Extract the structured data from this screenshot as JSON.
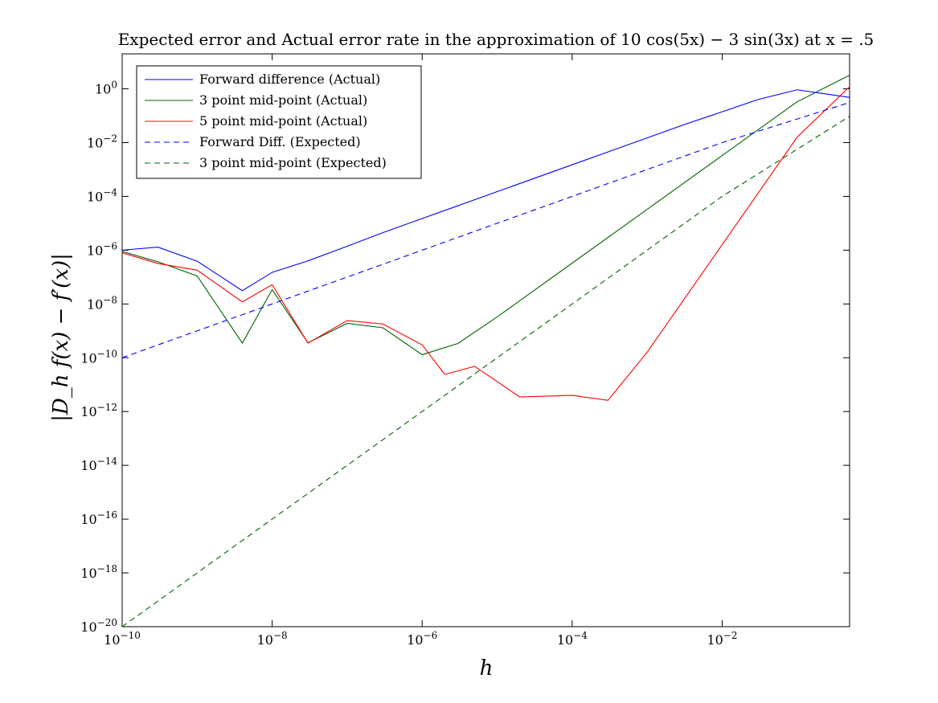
{
  "chart_data": {
    "type": "line",
    "title": "Expected error and Actual error rate in the approximation of 10 cos(5x) − 3 sin(3x) at x = .5",
    "xlabel": "h",
    "ylabel": "|D_h f(x) − f′(x)|",
    "xscale": "log",
    "yscale": "log",
    "xlim": [
      1e-10,
      0.5
    ],
    "ylim": [
      1e-20,
      20
    ],
    "grid": false,
    "legend_position": "top-left",
    "x_ticks": [
      {
        "value": 1e-10,
        "base": "10",
        "exp": "−10"
      },
      {
        "value": 1e-08,
        "base": "10",
        "exp": "−8"
      },
      {
        "value": 1e-06,
        "base": "10",
        "exp": "−6"
      },
      {
        "value": 0.0001,
        "base": "10",
        "exp": "−4"
      },
      {
        "value": 0.01,
        "base": "10",
        "exp": "−2"
      }
    ],
    "y_ticks": [
      {
        "value": 1e-20,
        "base": "10",
        "exp": "−20"
      },
      {
        "value": 1e-18,
        "base": "10",
        "exp": "−18"
      },
      {
        "value": 1e-16,
        "base": "10",
        "exp": "−16"
      },
      {
        "value": 1e-14,
        "base": "10",
        "exp": "−14"
      },
      {
        "value": 1e-12,
        "base": "10",
        "exp": "−12"
      },
      {
        "value": 1e-10,
        "base": "10",
        "exp": "−10"
      },
      {
        "value": 1e-08,
        "base": "10",
        "exp": "−8"
      },
      {
        "value": 1e-06,
        "base": "10",
        "exp": "−6"
      },
      {
        "value": 0.0001,
        "base": "10",
        "exp": "−4"
      },
      {
        "value": 0.01,
        "base": "10",
        "exp": "−2"
      },
      {
        "value": 1,
        "base": "10",
        "exp": "0"
      }
    ],
    "series": [
      {
        "name": "Forward difference (Actual)",
        "color": "#0000ff",
        "dash": "solid",
        "points": [
          [
            1e-10,
            1e-06
          ],
          [
            3e-10,
            1.3e-06
          ],
          [
            1e-09,
            3.9e-07
          ],
          [
            4e-09,
            3.1e-08
          ],
          [
            1e-08,
            1.5e-07
          ],
          [
            3e-08,
            4e-07
          ],
          [
            1e-07,
            1.4e-06
          ],
          [
            3e-07,
            4.5e-06
          ],
          [
            1e-06,
            1.5e-05
          ],
          [
            3e-06,
            4.5e-05
          ],
          [
            1e-05,
            0.00015
          ],
          [
            3e-05,
            0.00045
          ],
          [
            0.0001,
            0.0015
          ],
          [
            0.0003,
            0.0045
          ],
          [
            0.001,
            0.015
          ],
          [
            0.003,
            0.045
          ],
          [
            0.01,
            0.14
          ],
          [
            0.03,
            0.4
          ],
          [
            0.1,
            0.92
          ],
          [
            0.5,
            0.48
          ]
        ]
      },
      {
        "name": "3 point mid-point (Actual)",
        "color": "#006400",
        "dash": "solid",
        "points": [
          [
            1e-10,
            9e-07
          ],
          [
            3e-10,
            3.7e-07
          ],
          [
            1e-09,
            1.1e-07
          ],
          [
            4e-09,
            3.5e-10
          ],
          [
            1e-08,
            3.4e-08
          ],
          [
            3e-08,
            3.6e-10
          ],
          [
            1e-07,
            1.9e-09
          ],
          [
            3e-07,
            1.3e-09
          ],
          [
            1e-06,
            1.3e-10
          ],
          [
            3e-06,
            3.4e-10
          ],
          [
            1e-05,
            3.3e-09
          ],
          [
            0.0001,
            3.3e-07
          ],
          [
            0.001,
            3.3e-05
          ],
          [
            0.01,
            0.0033
          ],
          [
            0.1,
            0.33
          ],
          [
            0.5,
            3.2
          ]
        ]
      },
      {
        "name": "5 point mid-point (Actual)",
        "color": "#ff0000",
        "dash": "solid",
        "points": [
          [
            1e-10,
            8e-07
          ],
          [
            3e-10,
            3.2e-07
          ],
          [
            1e-09,
            1.8e-07
          ],
          [
            4e-09,
            1.2e-08
          ],
          [
            1e-08,
            5.2e-08
          ],
          [
            3e-08,
            3.5e-10
          ],
          [
            1e-07,
            2.4e-09
          ],
          [
            3e-07,
            1.8e-09
          ],
          [
            1e-06,
            3e-10
          ],
          [
            2e-06,
            2.4e-11
          ],
          [
            5e-06,
            4.8e-11
          ],
          [
            2e-05,
            3.5e-12
          ],
          [
            0.0001,
            4e-12
          ],
          [
            0.0003,
            2.6e-12
          ],
          [
            0.001,
            1.6e-10
          ],
          [
            0.01,
            1.6e-06
          ],
          [
            0.1,
            0.016
          ],
          [
            0.5,
            1.2
          ]
        ]
      },
      {
        "name": "Forward Diff. (Expected)",
        "color": "#0000ff",
        "dash": "dashed",
        "points": [
          [
            1e-10,
            1e-10
          ],
          [
            1e-08,
            1e-08
          ],
          [
            1e-06,
            1e-06
          ],
          [
            0.0001,
            0.0001
          ],
          [
            0.01,
            0.01
          ],
          [
            0.5,
            0.31
          ]
        ]
      },
      {
        "name": "3 point mid-point (Expected)",
        "color": "#006400",
        "dash": "dashed",
        "points": [
          [
            1e-10,
            1e-20
          ],
          [
            1e-08,
            1e-16
          ],
          [
            1e-06,
            1e-12
          ],
          [
            0.0001,
            1e-08
          ],
          [
            0.01,
            0.0001
          ],
          [
            0.5,
            0.095
          ]
        ]
      }
    ]
  }
}
